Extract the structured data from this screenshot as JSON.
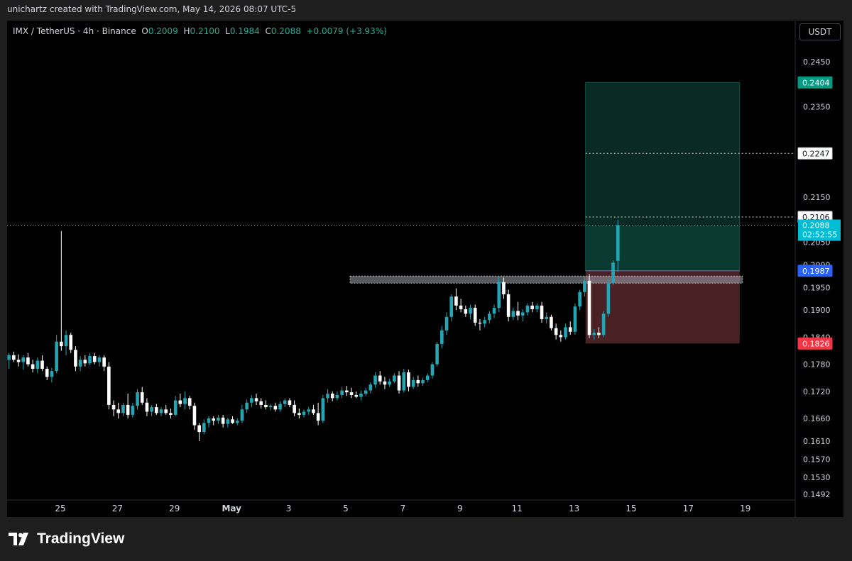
{
  "header": {
    "credit": "unichartz created with TradingView.com, May 14, 2026 08:07 UTC-5",
    "symbol": "IMX / TetherUS · 4h · Binance",
    "o_label": "O",
    "o_value": "0.2009",
    "h_label": "H",
    "h_value": "0.2100",
    "l_label": "L",
    "l_value": "0.1984",
    "c_label": "C",
    "c_value": "0.2088",
    "change": "+0.0079 (+3.93%)",
    "currency": "USDT"
  },
  "brand": {
    "name": "TradingView",
    "icon": "tradingview-logo-icon"
  },
  "colors": {
    "up": "#22a6b3",
    "down": "#ffffff",
    "target_zone": "#0b3a33",
    "target_zone_upper": "#0a2a26",
    "stop_zone": "#4a2226",
    "resistance": "#9ea3ab",
    "target_label": "#089981",
    "stop_label": "#f23645",
    "entry_label": "#2962ff",
    "price_label": "#00bcd4"
  },
  "chart_data": {
    "type": "candlestick",
    "timeframe": "4h",
    "y_range": [
      0.148,
      0.249
    ],
    "y_ticks": [
      "0.2450",
      "0.2350",
      "0.2150",
      "0.2050",
      "0.2000",
      "0.1950",
      "0.1900",
      "0.1840",
      "0.1780",
      "0.1720",
      "0.1660",
      "0.1610",
      "0.1570",
      "0.1530",
      "0.1492"
    ],
    "y_tick_values": [
      0.245,
      0.235,
      0.215,
      0.205,
      0.2,
      0.195,
      0.19,
      0.184,
      0.178,
      0.172,
      0.166,
      0.161,
      0.157,
      0.153,
      0.1492
    ],
    "x_ticks": [
      "25",
      "27",
      "29",
      "May",
      "3",
      "5",
      "7",
      "9",
      "11",
      "13",
      "15",
      "17",
      "19"
    ],
    "x_tick_days": [
      0,
      2,
      4,
      6,
      8,
      10,
      12,
      14,
      16,
      18,
      20,
      22,
      24
    ],
    "first_candle_day": -1.8,
    "candles": [
      {
        "o": 0.179,
        "h": 0.1805,
        "l": 0.177,
        "c": 0.18
      },
      {
        "o": 0.18,
        "h": 0.1808,
        "l": 0.1785,
        "c": 0.179
      },
      {
        "o": 0.179,
        "h": 0.1802,
        "l": 0.1775,
        "c": 0.1785
      },
      {
        "o": 0.1785,
        "h": 0.18,
        "l": 0.1768,
        "c": 0.1795
      },
      {
        "o": 0.1795,
        "h": 0.1805,
        "l": 0.1775,
        "c": 0.178
      },
      {
        "o": 0.178,
        "h": 0.179,
        "l": 0.1762,
        "c": 0.177
      },
      {
        "o": 0.177,
        "h": 0.1795,
        "l": 0.176,
        "c": 0.1788
      },
      {
        "o": 0.1788,
        "h": 0.18,
        "l": 0.1765,
        "c": 0.177
      },
      {
        "o": 0.177,
        "h": 0.1775,
        "l": 0.1745,
        "c": 0.1752
      },
      {
        "o": 0.1752,
        "h": 0.1772,
        "l": 0.174,
        "c": 0.1765
      },
      {
        "o": 0.1765,
        "h": 0.1845,
        "l": 0.176,
        "c": 0.183
      },
      {
        "o": 0.183,
        "h": 0.2075,
        "l": 0.181,
        "c": 0.182
      },
      {
        "o": 0.182,
        "h": 0.1855,
        "l": 0.18,
        "c": 0.1845
      },
      {
        "o": 0.1845,
        "h": 0.185,
        "l": 0.1805,
        "c": 0.1812
      },
      {
        "o": 0.1812,
        "h": 0.182,
        "l": 0.1765,
        "c": 0.1775
      },
      {
        "o": 0.1775,
        "h": 0.1798,
        "l": 0.1765,
        "c": 0.179
      },
      {
        "o": 0.179,
        "h": 0.18,
        "l": 0.1775,
        "c": 0.1782
      },
      {
        "o": 0.1782,
        "h": 0.1805,
        "l": 0.1778,
        "c": 0.1798
      },
      {
        "o": 0.1798,
        "h": 0.1805,
        "l": 0.178,
        "c": 0.1785
      },
      {
        "o": 0.1785,
        "h": 0.18,
        "l": 0.1775,
        "c": 0.1795
      },
      {
        "o": 0.1795,
        "h": 0.18,
        "l": 0.1765,
        "c": 0.1775
      },
      {
        "o": 0.1775,
        "h": 0.1785,
        "l": 0.168,
        "c": 0.169
      },
      {
        "o": 0.169,
        "h": 0.17,
        "l": 0.1665,
        "c": 0.168
      },
      {
        "o": 0.168,
        "h": 0.1695,
        "l": 0.166,
        "c": 0.1672
      },
      {
        "o": 0.1672,
        "h": 0.1695,
        "l": 0.1665,
        "c": 0.169
      },
      {
        "o": 0.169,
        "h": 0.1715,
        "l": 0.166,
        "c": 0.1668
      },
      {
        "o": 0.1668,
        "h": 0.1695,
        "l": 0.1662,
        "c": 0.1688
      },
      {
        "o": 0.1688,
        "h": 0.1725,
        "l": 0.168,
        "c": 0.1718
      },
      {
        "o": 0.1718,
        "h": 0.173,
        "l": 0.169,
        "c": 0.1695
      },
      {
        "o": 0.1695,
        "h": 0.1705,
        "l": 0.1665,
        "c": 0.1675
      },
      {
        "o": 0.1675,
        "h": 0.169,
        "l": 0.1665,
        "c": 0.1685
      },
      {
        "o": 0.1685,
        "h": 0.1692,
        "l": 0.1668,
        "c": 0.1672
      },
      {
        "o": 0.1672,
        "h": 0.1685,
        "l": 0.1665,
        "c": 0.168
      },
      {
        "o": 0.168,
        "h": 0.169,
        "l": 0.1668,
        "c": 0.1672
      },
      {
        "o": 0.1672,
        "h": 0.1682,
        "l": 0.166,
        "c": 0.1668
      },
      {
        "o": 0.1668,
        "h": 0.171,
        "l": 0.1665,
        "c": 0.17
      },
      {
        "o": 0.17,
        "h": 0.1715,
        "l": 0.1685,
        "c": 0.1692
      },
      {
        "o": 0.1692,
        "h": 0.172,
        "l": 0.168,
        "c": 0.1705
      },
      {
        "o": 0.1705,
        "h": 0.171,
        "l": 0.168,
        "c": 0.1688
      },
      {
        "o": 0.1688,
        "h": 0.1695,
        "l": 0.1635,
        "c": 0.1645
      },
      {
        "o": 0.1645,
        "h": 0.165,
        "l": 0.161,
        "c": 0.163
      },
      {
        "o": 0.163,
        "h": 0.1658,
        "l": 0.1625,
        "c": 0.165
      },
      {
        "o": 0.165,
        "h": 0.1665,
        "l": 0.164,
        "c": 0.166
      },
      {
        "o": 0.166,
        "h": 0.1665,
        "l": 0.1645,
        "c": 0.1655
      },
      {
        "o": 0.1655,
        "h": 0.1668,
        "l": 0.1648,
        "c": 0.1662
      },
      {
        "o": 0.1662,
        "h": 0.1668,
        "l": 0.164,
        "c": 0.1648
      },
      {
        "o": 0.1648,
        "h": 0.1662,
        "l": 0.164,
        "c": 0.1658
      },
      {
        "o": 0.1658,
        "h": 0.1665,
        "l": 0.1648,
        "c": 0.165
      },
      {
        "o": 0.165,
        "h": 0.166,
        "l": 0.1645,
        "c": 0.1655
      },
      {
        "o": 0.1655,
        "h": 0.169,
        "l": 0.165,
        "c": 0.168
      },
      {
        "o": 0.168,
        "h": 0.1702,
        "l": 0.1672,
        "c": 0.1695
      },
      {
        "o": 0.1695,
        "h": 0.1712,
        "l": 0.1685,
        "c": 0.1705
      },
      {
        "o": 0.1705,
        "h": 0.1715,
        "l": 0.169,
        "c": 0.1698
      },
      {
        "o": 0.1698,
        "h": 0.1705,
        "l": 0.1682,
        "c": 0.169
      },
      {
        "o": 0.169,
        "h": 0.17,
        "l": 0.168,
        "c": 0.1685
      },
      {
        "o": 0.1685,
        "h": 0.1692,
        "l": 0.1678,
        "c": 0.1688
      },
      {
        "o": 0.1688,
        "h": 0.1695,
        "l": 0.1675,
        "c": 0.168
      },
      {
        "o": 0.168,
        "h": 0.1698,
        "l": 0.1675,
        "c": 0.1692
      },
      {
        "o": 0.1692,
        "h": 0.1705,
        "l": 0.1685,
        "c": 0.17
      },
      {
        "o": 0.17,
        "h": 0.1705,
        "l": 0.1685,
        "c": 0.169
      },
      {
        "o": 0.169,
        "h": 0.17,
        "l": 0.1665,
        "c": 0.1672
      },
      {
        "o": 0.1672,
        "h": 0.1682,
        "l": 0.166,
        "c": 0.1668
      },
      {
        "o": 0.1668,
        "h": 0.168,
        "l": 0.1662,
        "c": 0.1675
      },
      {
        "o": 0.1675,
        "h": 0.1685,
        "l": 0.1668,
        "c": 0.168
      },
      {
        "o": 0.168,
        "h": 0.169,
        "l": 0.1668,
        "c": 0.1672
      },
      {
        "o": 0.1672,
        "h": 0.1695,
        "l": 0.1645,
        "c": 0.1655
      },
      {
        "o": 0.1655,
        "h": 0.1712,
        "l": 0.165,
        "c": 0.1705
      },
      {
        "o": 0.1705,
        "h": 0.1725,
        "l": 0.1695,
        "c": 0.1715
      },
      {
        "o": 0.1715,
        "h": 0.172,
        "l": 0.1698,
        "c": 0.1705
      },
      {
        "o": 0.1705,
        "h": 0.172,
        "l": 0.17,
        "c": 0.1712
      },
      {
        "o": 0.1712,
        "h": 0.173,
        "l": 0.1705,
        "c": 0.1722
      },
      {
        "o": 0.1722,
        "h": 0.1732,
        "l": 0.171,
        "c": 0.1718
      },
      {
        "o": 0.1718,
        "h": 0.1728,
        "l": 0.1705,
        "c": 0.1712
      },
      {
        "o": 0.1712,
        "h": 0.172,
        "l": 0.1705,
        "c": 0.1708
      },
      {
        "o": 0.1708,
        "h": 0.1722,
        "l": 0.17,
        "c": 0.1715
      },
      {
        "o": 0.1715,
        "h": 0.1728,
        "l": 0.171,
        "c": 0.1722
      },
      {
        "o": 0.1722,
        "h": 0.174,
        "l": 0.1715,
        "c": 0.1735
      },
      {
        "o": 0.1735,
        "h": 0.1762,
        "l": 0.1728,
        "c": 0.1755
      },
      {
        "o": 0.1755,
        "h": 0.1765,
        "l": 0.1735,
        "c": 0.1742
      },
      {
        "o": 0.1742,
        "h": 0.1752,
        "l": 0.1725,
        "c": 0.1735
      },
      {
        "o": 0.1735,
        "h": 0.1748,
        "l": 0.173,
        "c": 0.1742
      },
      {
        "o": 0.1742,
        "h": 0.176,
        "l": 0.1738,
        "c": 0.1755
      },
      {
        "o": 0.1755,
        "h": 0.1765,
        "l": 0.1715,
        "c": 0.1722
      },
      {
        "o": 0.1722,
        "h": 0.177,
        "l": 0.1718,
        "c": 0.1762
      },
      {
        "o": 0.1762,
        "h": 0.1768,
        "l": 0.172,
        "c": 0.173
      },
      {
        "o": 0.173,
        "h": 0.1752,
        "l": 0.1725,
        "c": 0.1745
      },
      {
        "o": 0.1745,
        "h": 0.1755,
        "l": 0.173,
        "c": 0.1738
      },
      {
        "o": 0.1738,
        "h": 0.175,
        "l": 0.1732,
        "c": 0.1745
      },
      {
        "o": 0.1745,
        "h": 0.176,
        "l": 0.174,
        "c": 0.1755
      },
      {
        "o": 0.1755,
        "h": 0.1785,
        "l": 0.1748,
        "c": 0.178
      },
      {
        "o": 0.178,
        "h": 0.183,
        "l": 0.1775,
        "c": 0.1825
      },
      {
        "o": 0.1825,
        "h": 0.1865,
        "l": 0.1815,
        "c": 0.1855
      },
      {
        "o": 0.1855,
        "h": 0.1895,
        "l": 0.1845,
        "c": 0.1885
      },
      {
        "o": 0.1885,
        "h": 0.1935,
        "l": 0.1875,
        "c": 0.193
      },
      {
        "o": 0.193,
        "h": 0.1948,
        "l": 0.19,
        "c": 0.191
      },
      {
        "o": 0.191,
        "h": 0.1925,
        "l": 0.1895,
        "c": 0.1902
      },
      {
        "o": 0.1902,
        "h": 0.191,
        "l": 0.1885,
        "c": 0.1892
      },
      {
        "o": 0.1892,
        "h": 0.1912,
        "l": 0.188,
        "c": 0.1905
      },
      {
        "o": 0.1905,
        "h": 0.1912,
        "l": 0.1865,
        "c": 0.1872
      },
      {
        "o": 0.1872,
        "h": 0.188,
        "l": 0.1855,
        "c": 0.187
      },
      {
        "o": 0.187,
        "h": 0.1885,
        "l": 0.1862,
        "c": 0.1878
      },
      {
        "o": 0.1878,
        "h": 0.1898,
        "l": 0.187,
        "c": 0.1892
      },
      {
        "o": 0.1892,
        "h": 0.1912,
        "l": 0.1882,
        "c": 0.1905
      },
      {
        "o": 0.1905,
        "h": 0.1975,
        "l": 0.1895,
        "c": 0.1962
      },
      {
        "o": 0.1962,
        "h": 0.1972,
        "l": 0.1925,
        "c": 0.1935
      },
      {
        "o": 0.1935,
        "h": 0.1945,
        "l": 0.1875,
        "c": 0.1885
      },
      {
        "o": 0.1885,
        "h": 0.1905,
        "l": 0.1878,
        "c": 0.1898
      },
      {
        "o": 0.1898,
        "h": 0.1918,
        "l": 0.1878,
        "c": 0.1888
      },
      {
        "o": 0.1888,
        "h": 0.1902,
        "l": 0.1875,
        "c": 0.1895
      },
      {
        "o": 0.1895,
        "h": 0.1915,
        "l": 0.1888,
        "c": 0.191
      },
      {
        "o": 0.191,
        "h": 0.1918,
        "l": 0.1895,
        "c": 0.1902
      },
      {
        "o": 0.1902,
        "h": 0.1915,
        "l": 0.1895,
        "c": 0.191
      },
      {
        "o": 0.191,
        "h": 0.1918,
        "l": 0.1872,
        "c": 0.188
      },
      {
        "o": 0.188,
        "h": 0.1895,
        "l": 0.187,
        "c": 0.1885
      },
      {
        "o": 0.1885,
        "h": 0.189,
        "l": 0.1855,
        "c": 0.186
      },
      {
        "o": 0.186,
        "h": 0.187,
        "l": 0.1835,
        "c": 0.1845
      },
      {
        "o": 0.1845,
        "h": 0.1855,
        "l": 0.183,
        "c": 0.184
      },
      {
        "o": 0.184,
        "h": 0.187,
        "l": 0.1835,
        "c": 0.1862
      },
      {
        "o": 0.1862,
        "h": 0.1875,
        "l": 0.1845,
        "c": 0.1852
      },
      {
        "o": 0.1852,
        "h": 0.1915,
        "l": 0.1845,
        "c": 0.1908
      },
      {
        "o": 0.1908,
        "h": 0.1945,
        "l": 0.19,
        "c": 0.194
      },
      {
        "o": 0.194,
        "h": 0.1975,
        "l": 0.193,
        "c": 0.1965
      },
      {
        "o": 0.1965,
        "h": 0.198,
        "l": 0.1838,
        "c": 0.1845
      },
      {
        "o": 0.1845,
        "h": 0.1858,
        "l": 0.1835,
        "c": 0.185
      },
      {
        "o": 0.185,
        "h": 0.1862,
        "l": 0.1838,
        "c": 0.1845
      },
      {
        "o": 0.1845,
        "h": 0.1898,
        "l": 0.184,
        "c": 0.1892
      },
      {
        "o": 0.1892,
        "h": 0.1968,
        "l": 0.1885,
        "c": 0.196
      },
      {
        "o": 0.196,
        "h": 0.201,
        "l": 0.1955,
        "c": 0.2005
      },
      {
        "o": 0.2009,
        "h": 0.21,
        "l": 0.1984,
        "c": 0.2088
      }
    ],
    "levels": {
      "last_price": "0.2088",
      "countdown": "02:52:55",
      "target": "0.2404",
      "mid_target": "0.2247",
      "level_2106": "0.2106",
      "entry": "0.1987",
      "stop": "0.1826",
      "resistance_zone": [
        0.1961,
        0.1969
      ]
    },
    "position_tool": {
      "start_day": 18.4,
      "end_day": 23.8
    },
    "resistance_span_days": [
      10.15,
      23.9
    ]
  }
}
